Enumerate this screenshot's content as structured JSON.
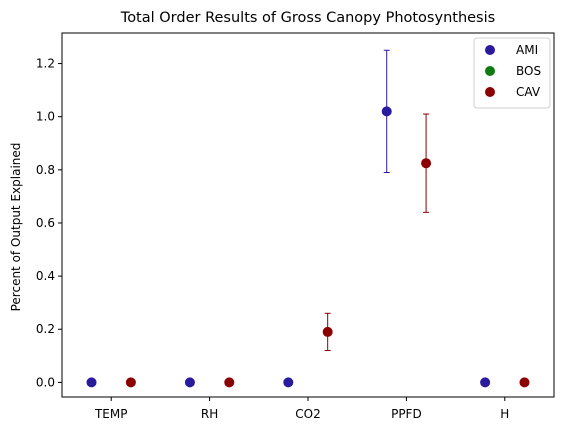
{
  "chart_data": {
    "type": "scatter",
    "title": "Total Order Results of Gross Canopy Photosynthesis",
    "xlabel": "",
    "ylabel": "Percent of Output Explained",
    "categories": [
      "TEMP",
      "RH",
      "CO2",
      "PPFD",
      "H"
    ],
    "ylim": [
      -0.055,
      1.315
    ],
    "yticks": [
      0.0,
      0.2,
      0.4,
      0.6,
      0.8,
      1.0,
      1.2
    ],
    "ytick_labels": [
      "0.0",
      "0.2",
      "0.4",
      "0.6",
      "0.8",
      "1.0",
      "1.2"
    ],
    "grid": false,
    "legend_position": "top-right",
    "series": [
      {
        "name": "AMI",
        "color": "#2a1a9e",
        "offset": -0.2,
        "values": [
          0.0,
          0.0,
          0.0,
          1.02,
          0.0
        ],
        "errors": [
          null,
          null,
          null,
          [
            0.79,
            1.25
          ],
          null
        ]
      },
      {
        "name": "BOS",
        "color": "#0f7a0f",
        "offset": 0.0,
        "values": [],
        "errors": []
      },
      {
        "name": "CAV",
        "color": "#8b0000",
        "offset": 0.2,
        "values": [
          0.0,
          0.0,
          0.19,
          0.825,
          0.0
        ],
        "errors": [
          null,
          null,
          [
            0.12,
            0.26
          ],
          [
            0.64,
            1.01
          ],
          null
        ]
      }
    ]
  }
}
